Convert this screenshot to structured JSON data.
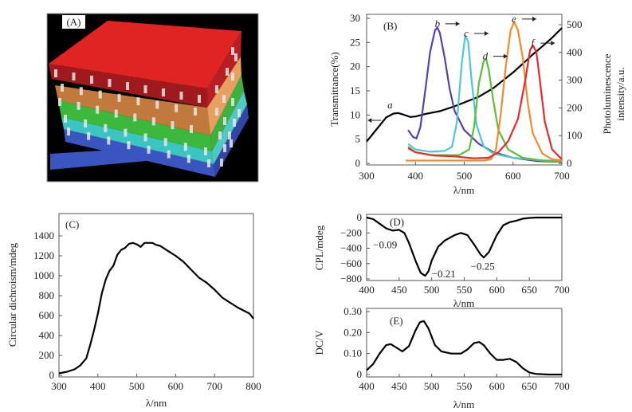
{
  "panel_a": {
    "label": "(A)",
    "description": "Stacked photonic layers (red, orange, green, cyan, blue) with embedded chiral molecules",
    "layer_colors": [
      "#e02424",
      "#e8883a",
      "#3cb83c",
      "#3cc4c0",
      "#3a55c0"
    ]
  },
  "chart_data": [
    {
      "id": "B",
      "type": "line",
      "panel_label": "(B)",
      "xlabel": "λ/nm",
      "ylabel": "Transmittance(%)",
      "y2label_line1": "Photoluminescence",
      "y2label_line2": "intensity/a.u.",
      "xlim": [
        300,
        700
      ],
      "ylim": [
        0,
        30
      ],
      "y2lim": [
        0,
        500
      ],
      "xticks": [
        "300",
        "400",
        "500",
        "600",
        "700"
      ],
      "yticks": [
        "0",
        "5",
        "10",
        "15",
        "20",
        "25",
        "30"
      ],
      "y2ticks": [
        "0",
        "100",
        "200",
        "300",
        "400",
        "500"
      ],
      "series": [
        {
          "name": "a",
          "axis": "left",
          "color": "#000000",
          "x": [
            300,
            320,
            340,
            355,
            365,
            375,
            390,
            400,
            420,
            450,
            480,
            500,
            530,
            560,
            580,
            600,
            620,
            640,
            660,
            680,
            700
          ],
          "y": [
            4.5,
            7,
            9.5,
            10.3,
            10.4,
            10.1,
            9.6,
            9.7,
            10.2,
            10.8,
            11.8,
            12.6,
            13.8,
            15.6,
            17.2,
            18.8,
            20.6,
            22.5,
            24.2,
            26,
            28
          ]
        },
        {
          "name": "b",
          "axis": "right",
          "color": "#5a3fb0",
          "x": [
            385,
            395,
            402,
            410,
            420,
            430,
            440,
            445,
            450,
            460,
            470,
            480,
            500,
            530,
            560,
            600,
            650,
            700
          ],
          "y": [
            120,
            95,
            90,
            130,
            260,
            400,
            480,
            490,
            470,
            380,
            270,
            190,
            120,
            70,
            40,
            20,
            8,
            5
          ]
        },
        {
          "name": "c",
          "axis": "right",
          "color": "#4ec6d6",
          "x": [
            385,
            400,
            430,
            460,
            475,
            485,
            495,
            502,
            508,
            515,
            525,
            540,
            560,
            600,
            650,
            700
          ],
          "y": [
            70,
            50,
            42,
            45,
            60,
            150,
            360,
            460,
            440,
            300,
            140,
            60,
            35,
            20,
            12,
            8
          ]
        },
        {
          "name": "d",
          "axis": "right",
          "color": "#5cbf3a",
          "x": [
            385,
            400,
            430,
            460,
            490,
            510,
            520,
            530,
            540,
            545,
            550,
            560,
            570,
            590,
            620,
            660,
            700
          ],
          "y": [
            60,
            40,
            30,
            30,
            30,
            50,
            130,
            290,
            370,
            375,
            340,
            220,
            120,
            50,
            20,
            10,
            5
          ]
        },
        {
          "name": "e",
          "axis": "right",
          "color": "#f28a2a",
          "x": [
            380,
            420,
            460,
            500,
            540,
            555,
            565,
            575,
            585,
            595,
            602,
            610,
            620,
            630,
            640,
            660,
            680,
            700
          ],
          "y": [
            10,
            10,
            10,
            10,
            10,
            15,
            50,
            180,
            350,
            480,
            510,
            480,
            380,
            220,
            110,
            35,
            15,
            10
          ]
        },
        {
          "name": "f",
          "axis": "right",
          "color": "#e52b2b",
          "x": [
            385,
            400,
            440,
            480,
            520,
            550,
            570,
            590,
            610,
            625,
            635,
            641,
            648,
            655,
            665,
            680,
            700
          ],
          "y": [
            55,
            40,
            28,
            25,
            18,
            20,
            40,
            80,
            160,
            300,
            410,
            425,
            400,
            300,
            150,
            50,
            15
          ]
        }
      ],
      "annotations": [
        {
          "text": "a",
          "x": 348,
          "y": 11.4,
          "arrow": "left"
        },
        {
          "text": "b",
          "x": 445,
          "y": 28.2,
          "arrow": "right"
        },
        {
          "text": "c",
          "x": 504,
          "y": 26.2,
          "arrow": "right"
        },
        {
          "text": "d",
          "x": 543,
          "y": 21.5,
          "arrow": "right"
        },
        {
          "text": "e",
          "x": 602,
          "y": 29.2,
          "arrow": "right"
        },
        {
          "text": "f",
          "x": 640,
          "y": 24.2,
          "arrow": "right"
        }
      ]
    },
    {
      "id": "C",
      "type": "line",
      "panel_label": "(C)",
      "xlabel": "λ/nm",
      "ylabel": "Circular dichroism/mdeg",
      "xlim": [
        300,
        800
      ],
      "ylim": [
        0,
        1600
      ],
      "xticks": [
        "300",
        "400",
        "500",
        "600",
        "700",
        "800"
      ],
      "yticks": [
        "0",
        "200",
        "400",
        "600",
        "800",
        "1000",
        "1200",
        "1400"
      ],
      "series": [
        {
          "name": "CD",
          "color": "#000000",
          "x": [
            300,
            320,
            340,
            355,
            370,
            380,
            390,
            400,
            410,
            420,
            430,
            440,
            450,
            460,
            470,
            480,
            490,
            500,
            510,
            520,
            530,
            540,
            550,
            560,
            580,
            600,
            620,
            640,
            660,
            680,
            700,
            720,
            740,
            760,
            780,
            790,
            800
          ],
          "y": [
            20,
            35,
            60,
            100,
            170,
            300,
            450,
            620,
            820,
            960,
            1050,
            1100,
            1210,
            1260,
            1280,
            1320,
            1330,
            1315,
            1290,
            1330,
            1330,
            1330,
            1310,
            1300,
            1250,
            1200,
            1140,
            1060,
            980,
            930,
            860,
            780,
            730,
            680,
            640,
            620,
            570
          ]
        }
      ]
    },
    {
      "id": "D",
      "type": "line",
      "panel_label": "(D)",
      "xlabel": "λ/nm",
      "ylabel": "CPL/mdeg",
      "xlim": [
        400,
        700
      ],
      "ylim": [
        -800,
        0
      ],
      "xticks": [
        "400",
        "450",
        "500",
        "550",
        "600",
        "650",
        "700"
      ],
      "yticks": [
        "0",
        "−200",
        "−400",
        "−600",
        "−800"
      ],
      "series": [
        {
          "name": "CPL",
          "color": "#000000",
          "x": [
            400,
            410,
            420,
            430,
            440,
            450,
            458,
            465,
            475,
            483,
            490,
            495,
            500,
            510,
            520,
            535,
            545,
            555,
            565,
            575,
            580,
            588,
            600,
            610,
            620,
            630,
            640,
            650,
            660,
            680,
            700
          ],
          "y": [
            0,
            -20,
            -80,
            -140,
            -170,
            -160,
            -200,
            -330,
            -560,
            -720,
            -760,
            -700,
            -560,
            -380,
            -300,
            -230,
            -200,
            -230,
            -350,
            -480,
            -520,
            -450,
            -230,
            -100,
            -60,
            -40,
            -15,
            -5,
            0,
            0,
            0
          ]
        }
      ],
      "annotations": [
        {
          "text": "−0.09",
          "x": 410,
          "y": -420
        },
        {
          "text": "−0.21",
          "x": 500,
          "y": -800
        },
        {
          "text": "−0.25",
          "x": 560,
          "y": -700
        }
      ]
    },
    {
      "id": "E",
      "type": "line",
      "panel_label": "(E)",
      "xlabel": "λ/nm",
      "ylabel": "DC/V",
      "xlim": [
        400,
        700
      ],
      "ylim": [
        0,
        0.3
      ],
      "xticks": [
        "400",
        "450",
        "500",
        "550",
        "600",
        "650",
        "700"
      ],
      "yticks": [
        "0",
        "0.10",
        "0.20",
        "0.30"
      ],
      "series": [
        {
          "name": "DC",
          "color": "#000000",
          "x": [
            400,
            410,
            420,
            430,
            437,
            445,
            455,
            465,
            475,
            482,
            488,
            495,
            505,
            515,
            530,
            545,
            555,
            565,
            573,
            580,
            590,
            600,
            610,
            620,
            630,
            640,
            650,
            660,
            680,
            700
          ],
          "y": [
            0.02,
            0.05,
            0.1,
            0.14,
            0.145,
            0.13,
            0.11,
            0.135,
            0.21,
            0.25,
            0.255,
            0.22,
            0.14,
            0.11,
            0.1,
            0.1,
            0.12,
            0.15,
            0.155,
            0.14,
            0.1,
            0.07,
            0.07,
            0.075,
            0.06,
            0.03,
            0.01,
            0.003,
            0,
            0
          ]
        }
      ]
    }
  ]
}
